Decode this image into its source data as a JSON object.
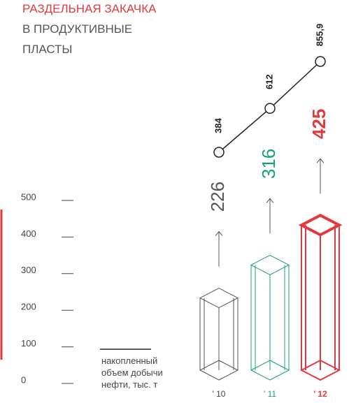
{
  "chart_data": {
    "type": "bar",
    "title": "РАЗДЕЛЬНАЯ ЗАКАЧКА",
    "subtitle": "В ПРОДУКТИВНЫЕ ПЛАСТЫ",
    "title_color": "#e03a3e",
    "categories": [
      "' 10",
      "' 11",
      "' 12"
    ],
    "values": [
      226,
      316,
      425
    ],
    "colors": [
      "#555555",
      "#1aa06e",
      "#e03a3e"
    ],
    "ylim": [
      0,
      500
    ],
    "yticks": [
      0,
      100,
      200,
      300,
      400,
      500
    ],
    "line_series": {
      "type": "line",
      "name": "накопленный объем добычи нефти, тыс. т",
      "color": "#222222",
      "values": [
        384,
        612,
        855.9
      ],
      "value_labels": [
        "384",
        "612",
        "855,9"
      ]
    }
  }
}
